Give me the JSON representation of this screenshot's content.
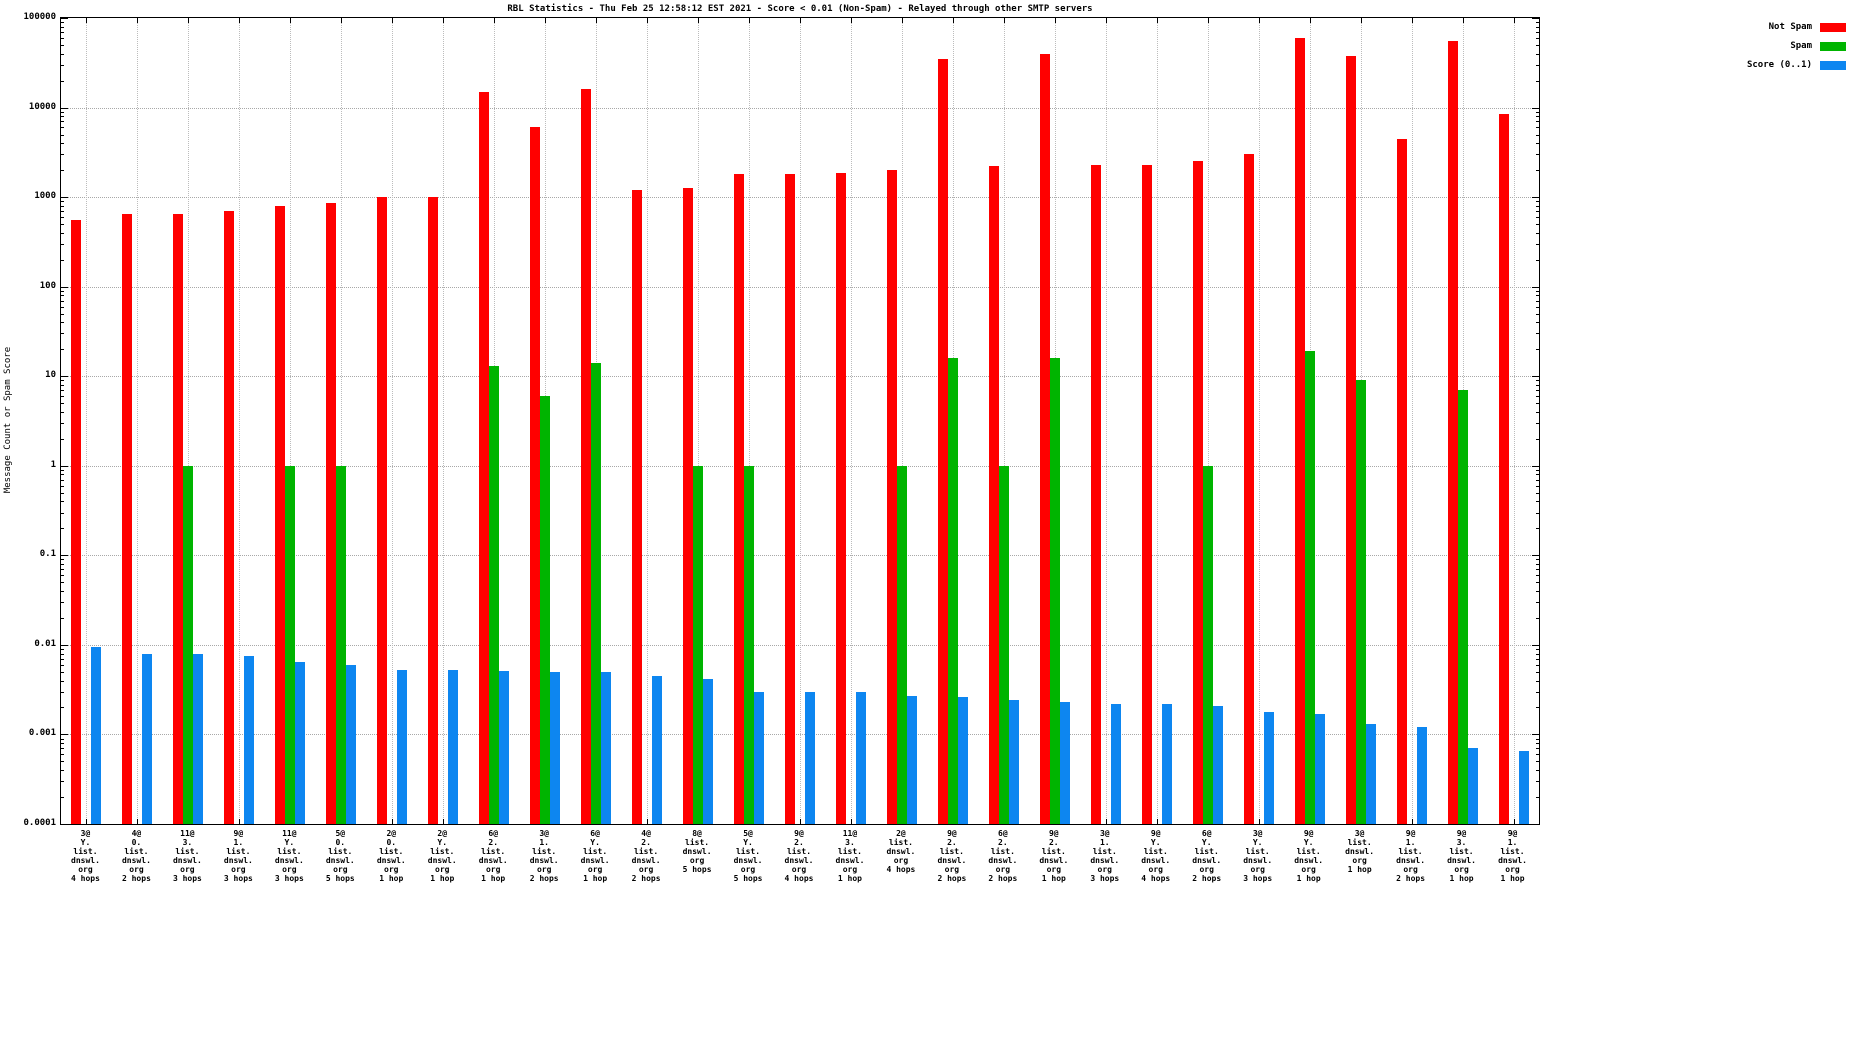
{
  "chart_data": {
    "type": "bar",
    "title": "RBL Statistics - Thu Feb 25 12:58:12 EST 2021 - Score < 0.01 (Non-Spam) - Relayed through other SMTP servers",
    "ylabel": "Message Count or Spam Score",
    "y_scale": "log",
    "ylim": [
      0.0001,
      100000
    ],
    "y_ticks": [
      "100000",
      "10000",
      "1000",
      "100",
      "10",
      "1",
      "0.1",
      "0.01",
      "0.001",
      "0.0001"
    ],
    "grid": true,
    "legend_position": "top-right-outside",
    "categories": [
      "3@\nY.\nlist.\ndnswl.\norg\n4 hops",
      "4@\n0.\nlist.\ndnswl.\norg\n2 hops",
      "11@\n3.\nlist.\ndnswl.\norg\n3 hops",
      "9@\n1.\nlist.\ndnswl.\norg\n3 hops",
      "11@\nY.\nlist.\ndnswl.\norg\n3 hops",
      "5@\n0.\nlist.\ndnswl.\norg\n5 hops",
      "2@\n0.\nlist.\ndnswl.\norg\n1 hop",
      "2@\nY.\nlist.\ndnswl.\norg\n1 hop",
      "6@\n2.\nlist.\ndnswl.\norg\n1 hop",
      "3@\n1.\nlist.\ndnswl.\norg\n2 hops",
      "6@\nY.\nlist.\ndnswl.\norg\n1 hop",
      "4@\n2.\nlist.\ndnswl.\norg\n2 hops",
      "8@\nlist.\ndnswl.\norg\n5 hops",
      "5@\nY.\nlist.\ndnswl.\norg\n5 hops",
      "9@\n2.\nlist.\ndnswl.\norg\n4 hops",
      "11@\n3.\nlist.\ndnswl.\norg\n1 hop",
      "2@\nlist.\ndnswl.\norg\n4 hops",
      "9@\n2.\nlist.\ndnswl.\norg\n2 hops",
      "6@\n2.\nlist.\ndnswl.\norg\n2 hops",
      "9@\n2.\nlist.\ndnswl.\norg\n1 hop",
      "3@\n1.\nlist.\ndnswl.\norg\n3 hops",
      "9@\nY.\nlist.\ndnswl.\norg\n4 hops",
      "6@\nY.\nlist.\ndnswl.\norg\n2 hops",
      "3@\nY.\nlist.\ndnswl.\norg\n3 hops",
      "9@\nY.\nlist.\ndnswl.\norg\n1 hop",
      "3@\nlist.\ndnswl.\norg\n1 hop",
      "9@\n1.\nlist.\ndnswl.\norg\n2 hops",
      "9@\n3.\nlist.\ndnswl.\norg\n1 hop",
      "9@\n1.\nlist.\ndnswl.\norg\n1 hop"
    ],
    "series": [
      {
        "name": "Not Spam",
        "color": "#ff0000",
        "values": [
          550,
          650,
          650,
          700,
          800,
          850,
          1000,
          1000,
          15000,
          6000,
          16000,
          1200,
          1250,
          1800,
          1800,
          1850,
          2000,
          35000,
          2200,
          40000,
          2300,
          2300,
          2500,
          3000,
          60000,
          38000,
          4500,
          55000,
          8500
        ]
      },
      {
        "name": "Spam",
        "color": "#00b400",
        "values": [
          0,
          0,
          1,
          0,
          1,
          1,
          0,
          0,
          13,
          6,
          14,
          0,
          1,
          1,
          0,
          0,
          1,
          16,
          1,
          16,
          0,
          0,
          1,
          0,
          19,
          9,
          0,
          7,
          0
        ]
      },
      {
        "name": "Score (0..1)",
        "color": "#0d86f0",
        "values": [
          0.0095,
          0.008,
          0.008,
          0.0075,
          0.0065,
          0.006,
          0.0052,
          0.0052,
          0.0051,
          0.005,
          0.005,
          0.0045,
          0.0042,
          0.003,
          0.003,
          0.003,
          0.0027,
          0.0026,
          0.0024,
          0.0023,
          0.0022,
          0.0022,
          0.0021,
          0.0018,
          0.0017,
          0.0013,
          0.0012,
          0.0007,
          0.00065
        ]
      }
    ]
  }
}
